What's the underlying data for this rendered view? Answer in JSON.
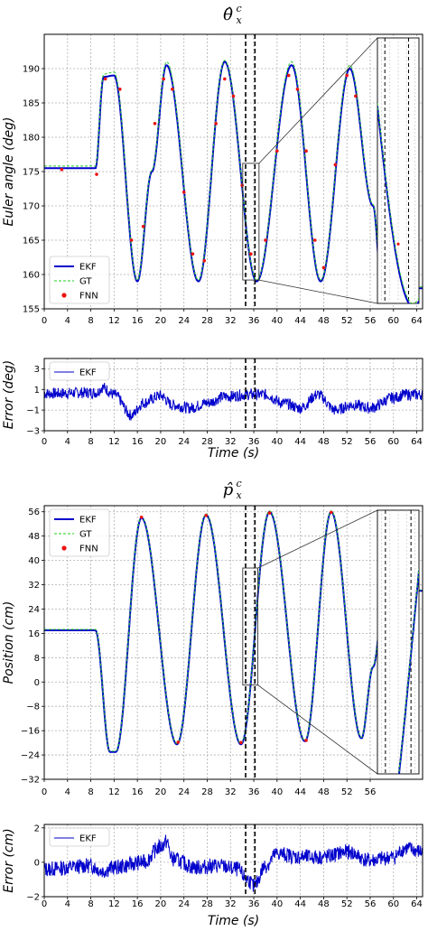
{
  "chart_data": [
    {
      "type": "line",
      "title": "θ̂",
      "title_sup": "c",
      "title_sub": "x",
      "ylabel": "Euler angle (deg)",
      "xlabel": "",
      "xlim": [
        0,
        65
      ],
      "ylim": [
        155,
        195
      ],
      "x_ticks": [
        "0",
        "4",
        "8",
        "12",
        "16",
        "20",
        "24",
        "28",
        "32",
        "36",
        "40",
        "44",
        "48",
        "52",
        "56",
        "60",
        "64"
      ],
      "y_ticks": [
        "155",
        "160",
        "165",
        "170",
        "175",
        "180",
        "185",
        "190"
      ],
      "grid": true,
      "legend_position": "lower-left",
      "legend": [
        "EKF",
        "GT",
        "FNN"
      ],
      "vlines": [
        34.6,
        36.2
      ],
      "zoom_box": {
        "x": [
          34.1,
          36.9
        ],
        "y": [
          159.2,
          176.2
        ]
      },
      "series": [
        {
          "name": "EKF",
          "style": "solid",
          "color": "#0000cc",
          "anchors": [
            [
              0,
              175.5
            ],
            [
              8.8,
              175.5
            ],
            [
              10.2,
              188.8
            ],
            [
              12,
              189
            ],
            [
              16,
              159
            ],
            [
              18.5,
              175
            ],
            [
              21,
              190.5
            ],
            [
              26.5,
              159
            ],
            [
              31,
              191
            ],
            [
              36.5,
              159
            ],
            [
              42.5,
              190.5
            ],
            [
              47.5,
              159
            ],
            [
              52.5,
              190
            ],
            [
              56.5,
              170
            ],
            [
              58,
              158
            ],
            [
              65,
              158
            ]
          ]
        },
        {
          "name": "GT",
          "style": "dashed",
          "color": "#22cc22",
          "anchors": [
            [
              0,
              175.8
            ],
            [
              8.8,
              175.8
            ],
            [
              10.2,
              189.2
            ],
            [
              12,
              189.5
            ],
            [
              16,
              159.2
            ],
            [
              18.5,
              175.2
            ],
            [
              21,
              191
            ],
            [
              26.5,
              159.2
            ],
            [
              31,
              191.2
            ],
            [
              36.5,
              159.2
            ],
            [
              42.5,
              191
            ],
            [
              47.5,
              159.2
            ],
            [
              52.5,
              190.5
            ],
            [
              56.5,
              170.2
            ],
            [
              58,
              158.2
            ],
            [
              65,
              158.2
            ]
          ]
        },
        {
          "name": "FNN",
          "style": "markers",
          "color": "#ee1111",
          "points": [
            [
              3,
              175.3
            ],
            [
              9,
              174.6
            ],
            [
              10.5,
              188.5
            ],
            [
              13,
              187
            ],
            [
              15,
              165
            ],
            [
              17,
              167
            ],
            [
              19,
              182
            ],
            [
              20.5,
              188.5
            ],
            [
              22,
              187
            ],
            [
              24,
              172
            ],
            [
              25.5,
              163
            ],
            [
              27.5,
              162
            ],
            [
              29.5,
              182
            ],
            [
              31,
              188.5
            ],
            [
              32.5,
              186
            ],
            [
              34,
              173
            ],
            [
              35.5,
              163
            ],
            [
              38,
              165
            ],
            [
              40,
              178
            ],
            [
              42,
              189
            ],
            [
              43.5,
              187
            ],
            [
              45,
              178
            ],
            [
              46.5,
              165
            ],
            [
              48,
              161
            ],
            [
              50,
              176
            ],
            [
              52,
              189
            ],
            [
              53.5,
              186
            ]
          ]
        }
      ]
    },
    {
      "type": "line",
      "title": "",
      "ylabel": "Error (deg)",
      "xlabel": "Time (s)",
      "xlim": [
        0,
        65
      ],
      "ylim": [
        -3,
        4
      ],
      "x_ticks": [
        "0",
        "4",
        "8",
        "12",
        "16",
        "20",
        "24",
        "28",
        "32",
        "36",
        "40",
        "44",
        "48",
        "52",
        "56",
        "60",
        "64"
      ],
      "y_ticks": [
        "−3",
        "−1",
        "1",
        "3"
      ],
      "grid": true,
      "legend_position": "top-left",
      "legend": [
        "EKF"
      ],
      "vlines": [
        34.6,
        36.2
      ],
      "series": [
        {
          "name": "EKF",
          "style": "noise",
          "color": "#0000cc",
          "seed": 7,
          "noise": 0.55,
          "anchors": [
            [
              0,
              0.6
            ],
            [
              9,
              0.7
            ],
            [
              10,
              1.2
            ],
            [
              12,
              0.5
            ],
            [
              15,
              -1.5
            ],
            [
              17,
              -0.3
            ],
            [
              20,
              0.4
            ],
            [
              22,
              -0.5
            ],
            [
              25,
              -0.8
            ],
            [
              28,
              -0.3
            ],
            [
              31,
              0.3
            ],
            [
              35,
              0.5
            ],
            [
              38,
              0.5
            ],
            [
              41,
              -0.3
            ],
            [
              44,
              -0.8
            ],
            [
              47,
              0.5
            ],
            [
              50,
              -1.0
            ],
            [
              53,
              -0.5
            ],
            [
              56,
              -0.8
            ],
            [
              60,
              0.2
            ],
            [
              62,
              0.5
            ],
            [
              65,
              0.5
            ]
          ]
        }
      ]
    },
    {
      "type": "line",
      "title": "p̂",
      "title_sup": "c",
      "title_sub": "x",
      "ylabel": "Position (cm)",
      "xlabel": "",
      "xlim": [
        0,
        65
      ],
      "ylim": [
        -32,
        58
      ],
      "x_ticks": [
        "0",
        "4",
        "8",
        "12",
        "16",
        "20",
        "24",
        "28",
        "32",
        "36",
        "40",
        "44",
        "48",
        "52",
        "56"
      ],
      "y_ticks": [
        "−32",
        "−24",
        "−16",
        "−8",
        "0",
        "8",
        "16",
        "24",
        "32",
        "40",
        "48",
        "56"
      ],
      "grid": true,
      "legend_position": "top-left",
      "legend": [
        "EKF",
        "GT",
        "FNN"
      ],
      "vlines": [
        34.6,
        36.2
      ],
      "zoom_box": {
        "x": [
          34.1,
          36.7
        ],
        "y": [
          -1,
          37.5
        ]
      },
      "series": [
        {
          "name": "EKF",
          "style": "solid",
          "color": "#0000cc",
          "anchors": [
            [
              0,
              17
            ],
            [
              8.8,
              17
            ],
            [
              11.3,
              -23
            ],
            [
              12.3,
              -23
            ],
            [
              16.7,
              54
            ],
            [
              22.8,
              -20.5
            ],
            [
              27.8,
              55
            ],
            [
              33.8,
              -20.5
            ],
            [
              38.7,
              56
            ],
            [
              44.8,
              -19.5
            ],
            [
              49.3,
              56
            ],
            [
              54.5,
              -18.5
            ],
            [
              56.5,
              5
            ],
            [
              58.5,
              30
            ],
            [
              65,
              30
            ]
          ]
        },
        {
          "name": "GT",
          "style": "dashed",
          "color": "#22cc22",
          "anchors": [
            [
              0,
              17.3
            ],
            [
              8.8,
              17.3
            ],
            [
              11.3,
              -22.7
            ],
            [
              12.3,
              -22.7
            ],
            [
              16.7,
              54.3
            ],
            [
              22.8,
              -20.2
            ],
            [
              27.8,
              55.3
            ],
            [
              33.8,
              -20.2
            ],
            [
              38.7,
              56.3
            ],
            [
              44.8,
              -19.2
            ],
            [
              49.3,
              56.3
            ],
            [
              54.5,
              -18.2
            ],
            [
              56.5,
              5.3
            ],
            [
              58.5,
              30.3
            ],
            [
              65,
              30.3
            ]
          ]
        },
        {
          "name": "FNN",
          "style": "markers",
          "color": "#ee1111",
          "points": [
            [
              16.7,
              54.2
            ],
            [
              27.8,
              54.8
            ],
            [
              38.7,
              55.6
            ],
            [
              49.3,
              55.8
            ],
            [
              23,
              -19.8
            ],
            [
              33.8,
              -19.9
            ],
            [
              45,
              -19.2
            ]
          ]
        }
      ]
    },
    {
      "type": "line",
      "title": "",
      "ylabel": "Error (cm)",
      "xlabel": "Time (s)",
      "xlim": [
        0,
        65
      ],
      "ylim": [
        -2,
        2.2
      ],
      "x_ticks": [
        "0",
        "4",
        "8",
        "12",
        "16",
        "20",
        "24",
        "28",
        "32",
        "36",
        "40",
        "44",
        "48",
        "52",
        "56",
        "60",
        "64"
      ],
      "y_ticks": [
        "−2",
        "0",
        "2"
      ],
      "grid": true,
      "legend_position": "top-left",
      "legend": [
        "EKF"
      ],
      "vlines": [
        34.6,
        36.2
      ],
      "series": [
        {
          "name": "EKF",
          "style": "noise",
          "color": "#0000cc",
          "seed": 13,
          "noise": 0.45,
          "anchors": [
            [
              0,
              -0.4
            ],
            [
              8,
              -0.2
            ],
            [
              10,
              -0.5
            ],
            [
              12,
              -0.3
            ],
            [
              17,
              0.0
            ],
            [
              20,
              0.9
            ],
            [
              21,
              1.2
            ],
            [
              22,
              0.2
            ],
            [
              26,
              -0.3
            ],
            [
              30,
              -0.2
            ],
            [
              33,
              -0.4
            ],
            [
              35,
              -1.0
            ],
            [
              36,
              -1.4
            ],
            [
              38,
              -0.2
            ],
            [
              40,
              0.5
            ],
            [
              44,
              0.3
            ],
            [
              48,
              0.3
            ],
            [
              52,
              0.6
            ],
            [
              56,
              0.1
            ],
            [
              60,
              0.3
            ],
            [
              62,
              0.8
            ],
            [
              65,
              0.6
            ]
          ]
        }
      ]
    }
  ]
}
